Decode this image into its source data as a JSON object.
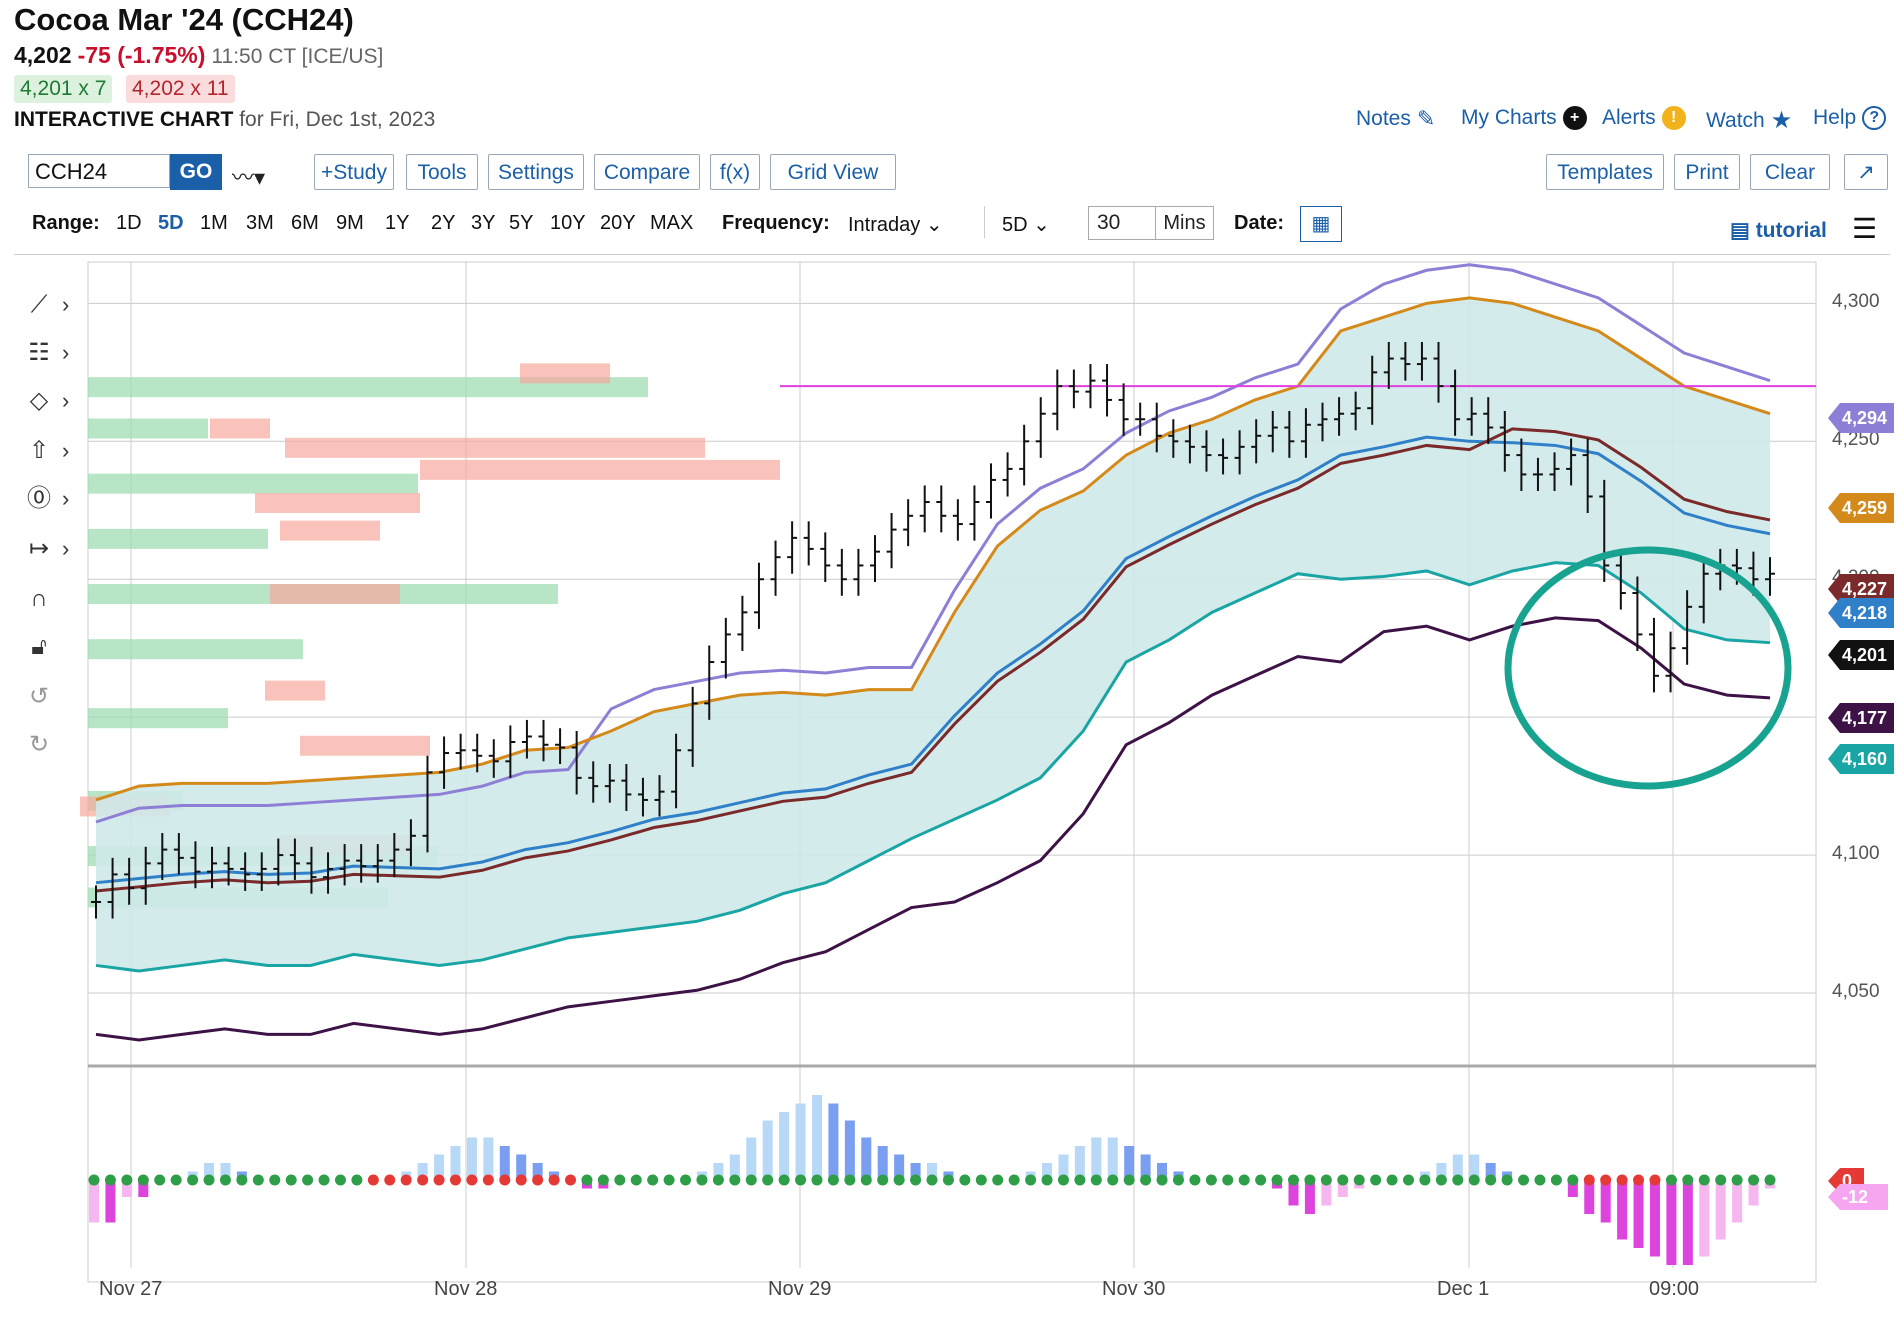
{
  "header": {
    "title": "Cocoa Mar '24 (CCH24)",
    "last": "4,202",
    "change": "-75 (-1.75%)",
    "time": "11:50 CT [ICE/US]",
    "bid": "4,201 x 7",
    "ask": "4,202 x 11",
    "interactive_label": "INTERACTIVE CHART",
    "interactive_date": "for Fri, Dec 1st, 2023"
  },
  "toplinks": {
    "notes": "Notes",
    "mycharts": "My Charts",
    "alerts": "Alerts",
    "watch": "Watch",
    "help": "Help"
  },
  "toolbar": {
    "symbol_value": "CCH24",
    "go": "GO",
    "study": "+Study",
    "tools": "Tools",
    "settings": "Settings",
    "compare": "Compare",
    "fx": "f(x)",
    "gridview": "Grid View",
    "templates": "Templates",
    "print": "Print",
    "clear": "Clear",
    "expand": "↗"
  },
  "range": {
    "label": "Range:",
    "options": [
      "1D",
      "5D",
      "1M",
      "3M",
      "6M",
      "9M",
      "1Y",
      "2Y",
      "3Y",
      "5Y",
      "10Y",
      "20Y",
      "MAX"
    ],
    "selected": "5D",
    "frequency_label": "Frequency:",
    "frequency_value": "Intraday",
    "period_value": "5D",
    "interval_value": "30",
    "interval_unit": "Mins",
    "date_label": "Date:",
    "tutorial": "tutorial"
  },
  "colors": {
    "link": "#1b5fa8",
    "upper_band": "#d48a1b",
    "purple_band": "#8e7fd6",
    "blue_ma": "#2f80c9",
    "brown_ma": "#7a2a2a",
    "dark_purple": "#3d1246",
    "teal": "#1aa5a5",
    "magenta_line": "#e040e0",
    "price_tag": "#111111",
    "circle": "#17a38f"
  },
  "chart_data": {
    "type": "bar",
    "title": "",
    "xlabel": "",
    "ylabel": "",
    "ylim": [
      4025,
      4315
    ],
    "y_ticks": [
      4050,
      4100,
      4150,
      4200,
      4250,
      4300
    ],
    "x_ticks": [
      "Nov 27",
      "Nov 28",
      "Nov 29",
      "Nov 30",
      "Dec 1",
      "09:00"
    ],
    "horizontal_line": 4270,
    "price_bars_close": [
      4083,
      4093,
      4088,
      4097,
      4102,
      4099,
      4094,
      4097,
      4095,
      4093,
      4095,
      4100,
      4097,
      4092,
      4095,
      4098,
      4096,
      4098,
      4102,
      4107,
      4130,
      4137,
      4138,
      4136,
      4134,
      4141,
      4143,
      4140,
      4139,
      4128,
      4125,
      4127,
      4122,
      4120,
      4123,
      4138,
      4155,
      4170,
      4180,
      4188,
      4200,
      4208,
      4215,
      4211,
      4205,
      4200,
      4205,
      4210,
      4218,
      4223,
      4228,
      4223,
      4220,
      4228,
      4236,
      4240,
      4250,
      4260,
      4270,
      4268,
      4272,
      4265,
      4258,
      4258,
      4252,
      4250,
      4248,
      4245,
      4244,
      4248,
      4252,
      4255,
      4250,
      4256,
      4258,
      4260,
      4262,
      4275,
      4280,
      4278,
      4280,
      4270,
      4258,
      4260,
      4255,
      4245,
      4238,
      4238,
      4240,
      4245,
      4230,
      4205,
      4195,
      4180,
      4165,
      4175,
      4190,
      4202,
      4205,
      4204,
      4200,
      4202
    ],
    "upper_band_values": [
      4120,
      4125,
      4126,
      4126,
      4126,
      4127,
      4128,
      4129,
      4130,
      4133,
      4138,
      4139,
      4145,
      4152,
      4155,
      4158,
      4159,
      4158,
      4160,
      4160,
      4188,
      4212,
      4225,
      4232,
      4245,
      4253,
      4258,
      4265,
      4270,
      4290,
      4295,
      4300,
      4302,
      4300,
      4295,
      4290,
      4280,
      4270,
      4265,
      4260
    ],
    "lower_band_values": [
      4060,
      4058,
      4060,
      4062,
      4060,
      4060,
      4064,
      4062,
      4060,
      4062,
      4066,
      4070,
      4072,
      4074,
      4076,
      4080,
      4086,
      4090,
      4098,
      4106,
      4113,
      4120,
      4128,
      4145,
      4170,
      4178,
      4188,
      4195,
      4202,
      4200,
      4201,
      4203,
      4198,
      4203,
      4206,
      4205,
      4195,
      4182,
      4178,
      4177
    ],
    "annotations": {
      "price_tags": [
        "4,294",
        "4,259",
        "4,227",
        "4,218",
        "4,201",
        "4,177",
        "4,160"
      ]
    },
    "volume_at_price_bids": [
      4270,
      4255,
      4235,
      4215,
      4195,
      4175,
      4150,
      4120,
      4100
    ],
    "volume_at_price_asks": [
      4275,
      4260,
      4250,
      4230,
      4210,
      4200,
      4180,
      4140,
      4108
    ],
    "histogram": {
      "name": "",
      "zero_labels": [
        "0",
        "-12"
      ],
      "values": [
        -5,
        -5,
        -2,
        -2,
        0,
        0,
        1,
        2,
        2,
        1,
        0,
        0,
        0,
        0,
        0,
        0,
        0,
        0,
        0,
        1,
        2,
        3,
        4,
        5,
        5,
        4,
        3,
        2,
        1,
        0,
        -1,
        -1,
        0,
        0,
        0,
        0,
        0,
        1,
        2,
        3,
        5,
        7,
        8,
        9,
        10,
        9,
        7,
        5,
        4,
        3,
        2,
        2,
        1,
        0,
        0,
        0,
        0,
        1,
        2,
        3,
        4,
        5,
        5,
        4,
        3,
        2,
        1,
        0,
        0,
        0,
        0,
        0,
        -1,
        -3,
        -4,
        -3,
        -2,
        -1,
        0,
        0,
        0,
        1,
        2,
        3,
        3,
        2,
        1,
        0,
        0,
        0,
        -2,
        -4,
        -5,
        -7,
        -8,
        -9,
        -10,
        -10,
        -9,
        -7,
        -5,
        -3,
        -1
      ]
    }
  }
}
